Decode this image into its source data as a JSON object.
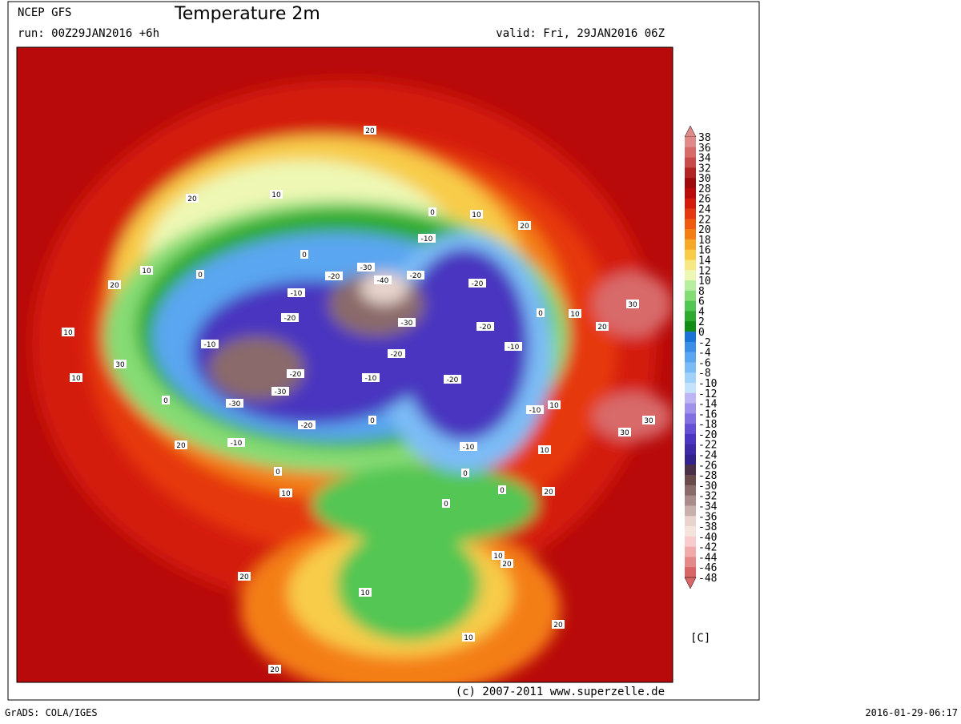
{
  "header": {
    "model": "NCEP GFS",
    "title": "Temperature 2m",
    "run": "run: 00Z29JAN2016 +6h",
    "valid": "valid: Fri, 29JAN2016 06Z"
  },
  "colorbar": {
    "labels": [
      "38",
      "36",
      "34",
      "32",
      "30",
      "28",
      "26",
      "24",
      "22",
      "20",
      "18",
      "16",
      "14",
      "12",
      "10",
      "8",
      "6",
      "4",
      "2",
      "0",
      "-2",
      "-4",
      "-6",
      "-8",
      "-10",
      "-12",
      "-14",
      "-16",
      "-18",
      "-20",
      "-22",
      "-24",
      "-26",
      "-28",
      "-30",
      "-32",
      "-34",
      "-36",
      "-38",
      "-40",
      "-42",
      "-44",
      "-46",
      "-48"
    ],
    "colors": [
      "#e08a8a",
      "#d86a6a",
      "#c84a4a",
      "#b02424",
      "#a00a0a",
      "#bb0a0a",
      "#d41a0a",
      "#e63810",
      "#f05a10",
      "#f47e14",
      "#f8a828",
      "#f8cc48",
      "#f8e884",
      "#eef8b4",
      "#b8eea0",
      "#86dc74",
      "#52c652",
      "#2eaa2e",
      "#128c12",
      "#1a74d8",
      "#3a8ee8",
      "#5aa6f0",
      "#7cbcf6",
      "#a0d2fa",
      "#c4e2fc",
      "#bcb4f4",
      "#a092ec",
      "#8270e2",
      "#6450d4",
      "#4a36c0",
      "#3c2aa8",
      "#34228c",
      "#4a3048",
      "#6a4a4a",
      "#8a6a6a",
      "#aa8c8c",
      "#cab0ac",
      "#e8d4cc",
      "#f4e4dc",
      "#f8cccc",
      "#f0aaaa",
      "#e48888",
      "#d86666"
    ],
    "unit": "[C]"
  },
  "map": {
    "contour_labels": [
      "20",
      "20",
      "10",
      "0",
      "10",
      "20",
      "10",
      "20",
      "0",
      "0",
      "-10",
      "-30",
      "-20",
      "-40",
      "-20",
      "-20",
      "-10",
      "-20",
      "-30",
      "-20",
      "0",
      "10",
      "30",
      "20",
      "10",
      "-10",
      "30",
      "-20",
      "-20",
      "-10",
      "-20",
      "-10",
      "10",
      "0",
      "-30",
      "-30",
      "-20",
      "0",
      "-10",
      "10",
      "30",
      "30",
      "-10",
      "20",
      "0",
      "0",
      "-10",
      "10",
      "10",
      "0",
      "20",
      "0",
      "10",
      "20",
      "20",
      "10",
      "20",
      "10",
      "20"
    ]
  },
  "footer": {
    "copyright": "(c) 2007-2011 www.superzelle.de",
    "software": "GrADS: COLA/IGES",
    "timestamp": "2016-01-29-06:17"
  }
}
